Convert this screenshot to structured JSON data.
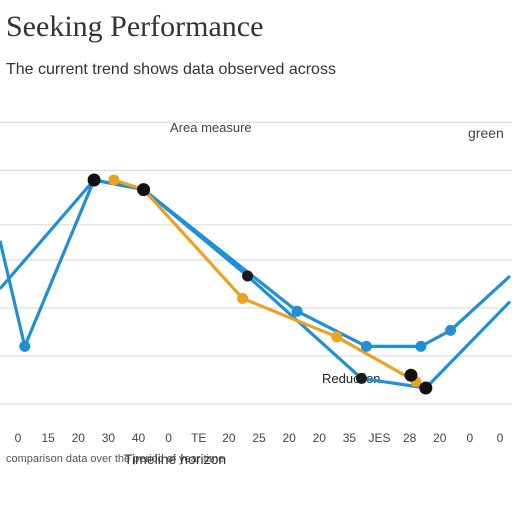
{
  "chart_data": {
    "type": "line",
    "title": "Seeking Performance",
    "subtitle": "The current trend shows data observed across",
    "inner_label": "Area measure",
    "right_label": "green",
    "annotation": "Reduction",
    "xlabel": "Timeline horizon",
    "x_caption": "comparison data over the period of year time",
    "x_ticks": [
      "0",
      "15",
      "20",
      "30",
      "40",
      "0",
      "TE",
      "20",
      "25",
      "20",
      "20",
      "35",
      "JES",
      "28",
      "20",
      "0",
      "0"
    ],
    "ylim": [
      0,
      10
    ],
    "grid": true,
    "series": [
      {
        "color": "#1f8fd6",
        "marker_color": "#1f8fd6",
        "x": [
          0,
          2.5,
          9.5,
          14.5,
          30,
          37,
          42.5,
          45.5,
          51.5
        ],
        "y": [
          5.6,
          2.3,
          7.5,
          7.2,
          3.4,
          2.3,
          2.3,
          2.8,
          4.5
        ]
      },
      {
        "color": "#1f8fd6",
        "marker_color": "#1a1a1a",
        "x": [
          0,
          9.5,
          14.5,
          25,
          36.5,
          43,
          51.5
        ],
        "y": [
          4.1,
          7.5,
          7.2,
          4.5,
          1.3,
          1.0,
          3.7
        ]
      },
      {
        "color": "#f0a020",
        "marker_color": "#f0a020",
        "x": [
          11.5,
          14.5,
          24.5,
          34,
          42,
          43
        ],
        "y": [
          7.5,
          7.2,
          3.8,
          2.6,
          1.2,
          1.0
        ]
      }
    ],
    "black_markers": [
      {
        "x": 9.5,
        "y": 7.5
      },
      {
        "x": 14.5,
        "y": 7.2
      },
      {
        "x": 41.5,
        "y": 1.4
      },
      {
        "x": 43,
        "y": 1.0
      }
    ]
  }
}
